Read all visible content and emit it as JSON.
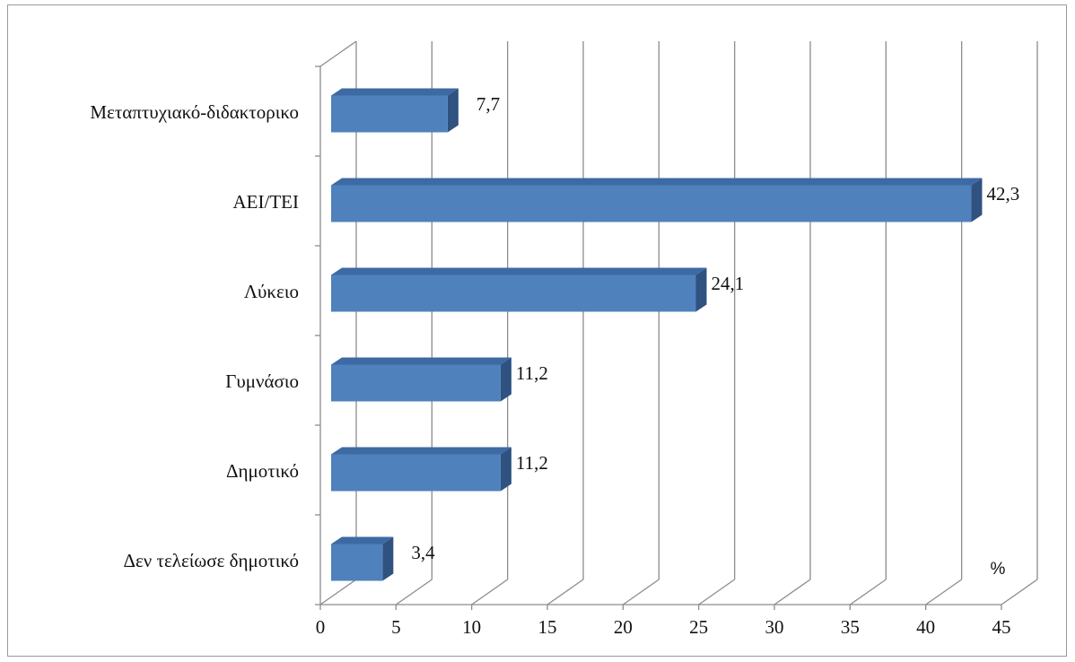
{
  "chart_data": {
    "type": "bar",
    "orientation": "horizontal",
    "style": "3d",
    "categories": [
      "Μεταπτυχιακό-διδακτορικο",
      "ΑΕΙ/ΤΕΙ",
      "Λύκειο",
      "Γυμνάσιο",
      "Δημοτικό",
      "Δεν τελείωσε  δημοτικό"
    ],
    "values": [
      7.7,
      42.3,
      24.1,
      11.2,
      11.2,
      3.4
    ],
    "data_labels": [
      "7,7",
      "42,3",
      "24,1",
      "11,2",
      "11,2",
      "3,4"
    ],
    "xlim": [
      0,
      45
    ],
    "xticks": [
      0,
      5,
      10,
      15,
      20,
      25,
      30,
      35,
      40,
      45
    ],
    "xtick_labels": [
      "0",
      "5",
      "10",
      "15",
      "20",
      "25",
      "30",
      "35",
      "40",
      "45"
    ],
    "unit_label": "%",
    "title": "",
    "xlabel": "",
    "ylabel": "",
    "grid": "vertical",
    "legend": "none",
    "colors": {
      "bar_front": "#4f81bd",
      "bar_top": "#3d6aa3",
      "bar_side": "#2f5280",
      "grid": "#8c8c8c",
      "axis": "#8c8c8c",
      "frame": "#9a9a9a"
    }
  }
}
